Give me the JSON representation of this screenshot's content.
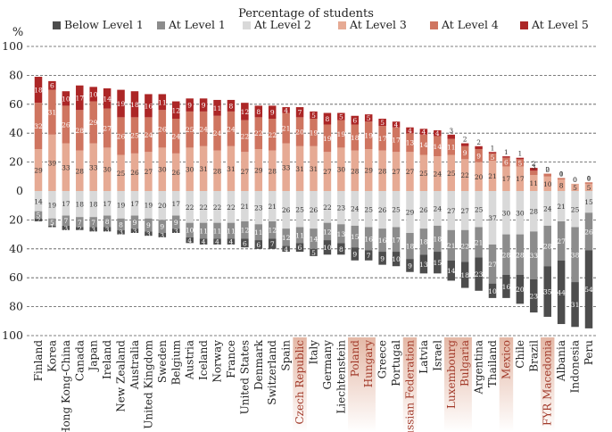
{
  "chart_data": {
    "type": "bar",
    "stacked": "diverging",
    "title": "Percentage of students",
    "ylabel": "%",
    "ylim": [
      -100,
      100
    ],
    "ytick_values": [
      100,
      80,
      60,
      40,
      20,
      0,
      -20,
      -40,
      -60,
      -80,
      -100
    ],
    "ytick_labels": [
      "100",
      "80",
      "60",
      "40",
      "20",
      "0",
      "20",
      "40",
      "60",
      "80",
      "100"
    ],
    "grid": true,
    "legend_position": "top",
    "categories": [
      "Finland",
      "Korea",
      "Hong Kong-China",
      "Canada",
      "Japan",
      "Ireland",
      "New Zealand",
      "Australia",
      "United Kingdom",
      "Sweden",
      "Belgium",
      "Austria",
      "Iceland",
      "Norway",
      "France",
      "United States",
      "Denmark",
      "Switzerland",
      "Spain",
      "Czech Republic",
      "Italy",
      "Germany",
      "Liechtenstein",
      "Poland",
      "Hungary",
      "Greece",
      "Portugal",
      "Russian Federation",
      "Latvia",
      "Israel",
      "Luxembourg",
      "Bulgaria",
      "Argentina",
      "Thailand",
      "Mexico",
      "Chile",
      "Brazil",
      "FYR Macedonia",
      "Albania",
      "Indonesia",
      "Peru"
    ],
    "highlighted_categories": [
      "Czech Republic",
      "Poland",
      "Hungary",
      "Russian Federation",
      "Luxembourg",
      "Bulgaria",
      "Mexico",
      "FYR Macedonia"
    ],
    "series": [
      {
        "name": "Below Level 1",
        "color": "#4d4d4d",
        "direction": "negative",
        "values": [
          2,
          1,
          3,
          2,
          3,
          3,
          3,
          3,
          3,
          3,
          3,
          4,
          4,
          4,
          4,
          6,
          6,
          7,
          4,
          6,
          5,
          10,
          8,
          9,
          7,
          9,
          10,
          9,
          13,
          15,
          14,
          18,
          23,
          10,
          16,
          20,
          23,
          35,
          44,
          31,
          54
        ],
        "labels": [
          "2",
          "1",
          "3",
          "2",
          "3",
          "3",
          "3",
          "3",
          "3",
          "3",
          "3",
          "4",
          "4",
          "4",
          "4",
          "6",
          "6",
          "7",
          "4",
          "6",
          "5",
          "10",
          "8",
          "9",
          "7",
          "9",
          "10",
          "9",
          "13",
          "15",
          "14",
          "18",
          "23",
          "10",
          "16",
          "20",
          "23",
          "35",
          "44",
          "31",
          "54"
        ]
      },
      {
        "name": "At Level 1",
        "color": "#8c8c8c",
        "direction": "negative",
        "values": [
          5,
          5,
          7,
          7,
          7,
          8,
          8,
          9,
          9,
          9,
          9,
          10,
          11,
          11,
          11,
          12,
          11,
          12,
          12,
          11,
          14,
          12,
          13,
          15,
          16,
          16,
          17,
          18,
          18,
          18,
          21,
          22,
          21,
          27,
          28,
          28,
          33,
          28,
          27,
          38,
          26
        ],
        "labels": [
          "5",
          "5",
          "7",
          "7",
          "7",
          "8",
          "8",
          "9",
          "9",
          "9",
          "9",
          "10",
          "11",
          "11",
          "11",
          "12",
          "11",
          "12",
          "12",
          "11",
          "14",
          "12",
          "13",
          "15",
          "16",
          "16",
          "17",
          "18",
          "18",
          "18",
          "21",
          "22",
          "21",
          "27",
          "28",
          "28",
          "33",
          "28",
          "27",
          "38",
          "26"
        ]
      },
      {
        "name": "At Level 2",
        "color": "#d9d9d9",
        "direction": "negative",
        "values": [
          14,
          19,
          17,
          18,
          18,
          17,
          19,
          17,
          19,
          20,
          17,
          22,
          22,
          22,
          22,
          21,
          23,
          21,
          26,
          25,
          26,
          22,
          23,
          24,
          25,
          26,
          25,
          29,
          26,
          24,
          27,
          27,
          25,
          37,
          30,
          30,
          28,
          24,
          21,
          25,
          15
        ],
        "labels": [
          "14",
          "19",
          "17",
          "18",
          "18",
          "17",
          "19",
          "17",
          "19",
          "20",
          "17",
          "22",
          "22",
          "22",
          "22",
          "21",
          "23",
          "21",
          "26",
          "25",
          "26",
          "22",
          "23",
          "24",
          "25",
          "26",
          "25",
          "29",
          "26",
          "24",
          "27",
          "27",
          "25",
          "37",
          "30",
          "30",
          "28",
          "24",
          "21",
          "25",
          "15"
        ]
      },
      {
        "name": "At Level 3",
        "color": "#e6aa94",
        "direction": "positive",
        "values": [
          29,
          39,
          33,
          28,
          33,
          30,
          25,
          26,
          27,
          30,
          26,
          30,
          31,
          28,
          31,
          27,
          29,
          28,
          33,
          31,
          31,
          27,
          30,
          28,
          29,
          28,
          27,
          27,
          25,
          24,
          25,
          22,
          20,
          21,
          17,
          17,
          11,
          10,
          8,
          5,
          5
        ],
        "labels": [
          "29",
          "39",
          "33",
          "28",
          "33",
          "30",
          "25",
          "26",
          "27",
          "30",
          "26",
          "30",
          "31",
          "28",
          "31",
          "27",
          "29",
          "28",
          "33",
          "31",
          "31",
          "27",
          "30",
          "28",
          "29",
          "28",
          "27",
          "27",
          "25",
          "24",
          "25",
          "22",
          "20",
          "21",
          "17",
          "17",
          "11",
          "10",
          "8",
          "5",
          "5"
        ]
      },
      {
        "name": "At Level 4",
        "color": "#cf7560",
        "direction": "positive",
        "values": [
          32,
          31,
          26,
          28,
          29,
          27,
          26,
          25,
          24,
          26,
          24,
          25,
          24,
          24,
          24,
          22,
          22,
          22,
          21,
          20,
          19,
          19,
          19,
          18,
          19,
          17,
          17,
          13,
          14,
          14,
          11,
          9,
          9,
          5,
          6,
          5,
          3,
          2,
          1,
          0,
          1
        ],
        "labels": [
          "32",
          "31",
          "26",
          "28",
          "29",
          "27",
          "26",
          "25",
          "24",
          "26",
          "24",
          "25",
          "24",
          "24",
          "24",
          "22",
          "22",
          "22",
          "21",
          "20",
          "19",
          "19",
          "19",
          "18",
          "19",
          "17",
          "17",
          "13",
          "14",
          "14",
          "11",
          "9",
          "9",
          "5",
          "6",
          "5",
          "3",
          "2",
          "1",
          "0",
          "1"
        ]
      },
      {
        "name": "At Level 5",
        "color": "#ac2626",
        "direction": "positive",
        "values": [
          18,
          6,
          10,
          17,
          10,
          14,
          19,
          18,
          16,
          11,
          12,
          9,
          9,
          11,
          8,
          12,
          8,
          9,
          4,
          7,
          5,
          8,
          5,
          6,
          5,
          5,
          4,
          4,
          4,
          4,
          3,
          2,
          2,
          1,
          1,
          1,
          2,
          0,
          0,
          0,
          0
        ],
        "labels": [
          "18",
          "6",
          "10",
          "17",
          "10",
          "14",
          "19",
          "18",
          "16",
          "11",
          "12",
          "9",
          "9",
          "11",
          "8",
          "12",
          "8",
          "9",
          "4",
          "7",
          "5",
          "8",
          "5",
          "6",
          "5",
          "5",
          "4",
          "4",
          "4",
          "4",
          "3",
          "2",
          "2",
          "1",
          "1",
          "1",
          "2",
          "0",
          "0",
          "0",
          "0"
        ]
      }
    ]
  }
}
